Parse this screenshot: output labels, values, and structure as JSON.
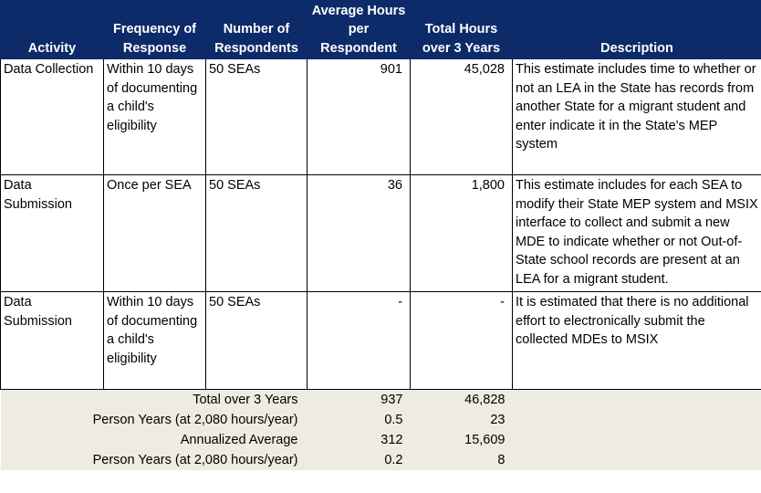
{
  "table": {
    "headers": {
      "activity": "Activity",
      "frequency": "Frequency of Response",
      "respondents": "Number of Respondents",
      "avg_hours": "Average Hours per Respondent",
      "total_hours": "Total Hours over 3 Years",
      "description": "Description"
    },
    "rows": [
      {
        "activity": "Data Collection",
        "frequency": "Within 10 days of documenting a child's eligibility",
        "respondents": "50 SEAs",
        "avg_hours": "901",
        "total_hours": "45,028",
        "description": "This estimate includes time to whether or not an LEA in the State has records from another State for a migrant student and enter indicate it in the State's MEP system"
      },
      {
        "activity": "Data Submission",
        "frequency": "Once per SEA",
        "respondents": "50 SEAs",
        "avg_hours": "36",
        "total_hours": "1,800",
        "description": "This estimate includes for each SEA to modify their State MEP system and MSIX interface to collect and submit a new MDE to indicate whether or not Out-of-State school records are present at an LEA for a migrant student."
      },
      {
        "activity": "Data Submission",
        "frequency": "Within 10 days of documenting a child's eligibility",
        "respondents": "50 SEAs",
        "avg_hours": "-",
        "total_hours": "-",
        "description": "It is estimated that there is no additional effort to electronically submit the collected MDEs to MSIX"
      }
    ],
    "summary": [
      {
        "label": "Total over 3 Years",
        "avg": "937",
        "total": "46,828"
      },
      {
        "label": "Person Years (at 2,080 hours/year)",
        "avg": "0.5",
        "total": "23"
      },
      {
        "label": "Annualized Average",
        "avg": "312",
        "total": "15,609"
      },
      {
        "label": "Person Years (at 2,080 hours/year)",
        "avg": "0.2",
        "total": "8"
      }
    ]
  }
}
